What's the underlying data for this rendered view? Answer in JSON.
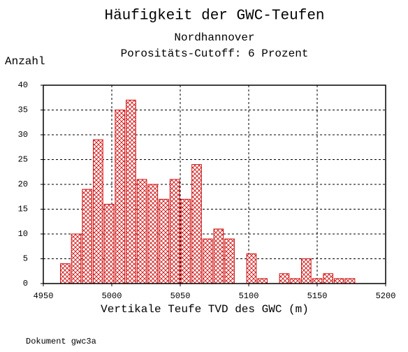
{
  "chart_data": {
    "type": "histogram",
    "title": "Häufigkeit der GWC-Teufen",
    "subtitle": [
      "Nordhannover",
      "Porositäts-Cutoff: 6 Prozent"
    ],
    "y_label": "Anzahl",
    "x_label": "Vertikale Teufe TVD des GWC (m)",
    "note": "Dokument gwc3a",
    "bins": [
      4962,
      4970,
      4978,
      4986,
      4994,
      5002,
      5010,
      5018,
      5026,
      5034,
      5042,
      5050,
      5058,
      5066,
      5074,
      5082,
      5090,
      5098,
      5106,
      5114,
      5122,
      5130,
      5138,
      5146,
      5154,
      5162,
      5170,
      5178
    ],
    "values": [
      4,
      10,
      19,
      29,
      16,
      35,
      37,
      21,
      20,
      17,
      21,
      17,
      24,
      9,
      11,
      9,
      0,
      6,
      1,
      0,
      2,
      1,
      5,
      1,
      2,
      1,
      1
    ],
    "color": "#d01010",
    "xlim": [
      4950,
      5200
    ],
    "xticks": [
      4950,
      5000,
      5050,
      5100,
      5150,
      5200
    ],
    "ylim": [
      0,
      40
    ],
    "yticks": [
      0,
      5,
      10,
      15,
      20,
      25,
      30,
      35,
      40
    ],
    "grid": true
  }
}
